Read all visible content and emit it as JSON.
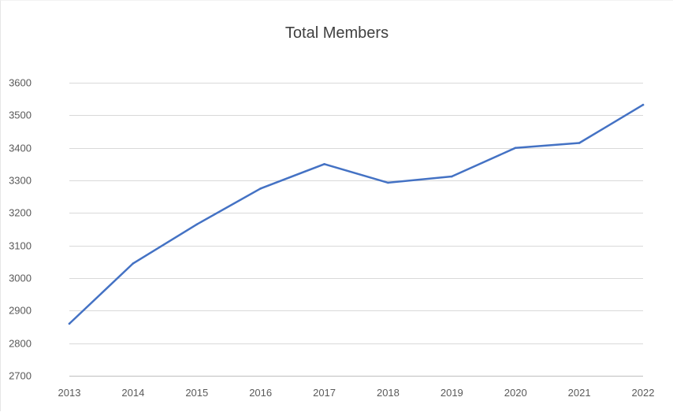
{
  "chart_data": {
    "type": "line",
    "title": "Total Members",
    "xlabel": "",
    "ylabel": "",
    "x": [
      "2013",
      "2014",
      "2015",
      "2016",
      "2017",
      "2018",
      "2019",
      "2020",
      "2021",
      "2022"
    ],
    "series": [
      {
        "values": [
          2860,
          3045,
          3165,
          3275,
          3350,
          3293,
          3312,
          3400,
          3415,
          3532
        ],
        "color": "#4472c4"
      }
    ],
    "ylim": [
      2700,
      3600
    ],
    "yticks": [
      2700,
      2800,
      2900,
      3000,
      3100,
      3200,
      3300,
      3400,
      3500,
      3600
    ],
    "grid": true,
    "legend": "none"
  }
}
